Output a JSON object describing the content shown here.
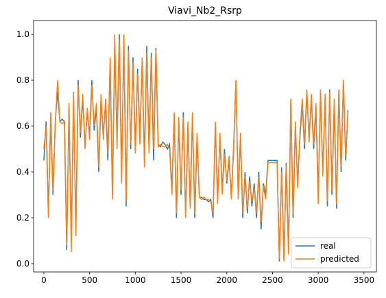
{
  "chart_data": {
    "type": "line",
    "title": "Viavi_Nb2_Rsrp",
    "x": [
      0,
      25,
      50,
      75,
      100,
      125,
      150,
      175,
      200,
      225,
      250,
      275,
      300,
      325,
      350,
      375,
      400,
      425,
      450,
      475,
      500,
      525,
      550,
      575,
      600,
      625,
      650,
      675,
      700,
      725,
      750,
      775,
      800,
      825,
      850,
      875,
      900,
      925,
      950,
      975,
      1000,
      1025,
      1050,
      1075,
      1100,
      1125,
      1150,
      1175,
      1200,
      1225,
      1250,
      1275,
      1300,
      1325,
      1350,
      1375,
      1400,
      1425,
      1450,
      1475,
      1500,
      1525,
      1550,
      1575,
      1600,
      1625,
      1650,
      1675,
      1700,
      1725,
      1750,
      1775,
      1800,
      1825,
      1850,
      1875,
      1900,
      1925,
      1950,
      1975,
      2000,
      2025,
      2050,
      2075,
      2100,
      2125,
      2150,
      2175,
      2200,
      2225,
      2250,
      2275,
      2300,
      2325,
      2350,
      2375,
      2400,
      2425,
      2450,
      2475,
      2500,
      2525,
      2550,
      2575,
      2600,
      2625,
      2650,
      2675,
      2700,
      2725,
      2750,
      2775,
      2800,
      2825,
      2850,
      2875,
      2900,
      2925,
      2950,
      2975,
      3000,
      3025,
      3050,
      3075,
      3100,
      3125,
      3150,
      3175,
      3200,
      3225,
      3250,
      3275,
      3300,
      3325
    ],
    "series": [
      {
        "name": "real",
        "color": "#1f77b4",
        "values": [
          0.45,
          0.62,
          0.22,
          0.64,
          0.3,
          0.62,
          0.75,
          0.62,
          0.63,
          0.62,
          0.06,
          0.68,
          0.1,
          0.72,
          0.15,
          0.8,
          0.55,
          0.72,
          0.52,
          0.66,
          0.56,
          0.8,
          0.58,
          0.68,
          0.4,
          0.72,
          0.56,
          0.7,
          0.45,
          0.88,
          0.3,
          0.95,
          0.55,
          1.0,
          0.4,
          0.98,
          0.25,
          0.95,
          0.5,
          0.9,
          0.5,
          0.85,
          0.55,
          0.88,
          0.45,
          0.95,
          0.5,
          0.92,
          0.45,
          0.94,
          0.52,
          0.51,
          0.53,
          0.52,
          0.5,
          0.52,
          0.32,
          0.65,
          0.2,
          0.62,
          0.3,
          0.66,
          0.21,
          0.6,
          0.25,
          0.65,
          0.2,
          0.55,
          0.29,
          0.29,
          0.28,
          0.28,
          0.27,
          0.28,
          0.2,
          0.6,
          0.28,
          0.55,
          0.32,
          0.5,
          0.35,
          0.45,
          0.3,
          0.5,
          0.8,
          0.3,
          0.55,
          0.2,
          0.4,
          0.22,
          0.38,
          0.25,
          0.35,
          0.2,
          0.4,
          0.15,
          0.35,
          0.3,
          0.45,
          0.45,
          0.45,
          0.45,
          0.45,
          0.01,
          0.42,
          0.02,
          0.44,
          0.05,
          0.7,
          0.2,
          0.6,
          0.35,
          0.55,
          0.7,
          0.5,
          0.75,
          0.55,
          0.72,
          0.5,
          0.68,
          0.3,
          0.75,
          0.4,
          0.72,
          0.25,
          0.76,
          0.3,
          0.7,
          0.24,
          0.75,
          0.4,
          0.8,
          0.45,
          0.67
        ]
      },
      {
        "name": "predicted",
        "color": "#ff7f0e",
        "values": [
          0.5,
          0.6,
          0.2,
          0.66,
          0.32,
          0.61,
          0.8,
          0.62,
          0.61,
          0.62,
          0.08,
          0.7,
          0.05,
          0.75,
          0.12,
          0.78,
          0.57,
          0.74,
          0.5,
          0.68,
          0.54,
          0.78,
          0.6,
          0.7,
          0.42,
          0.74,
          0.54,
          0.72,
          0.48,
          0.9,
          0.28,
          1.0,
          0.5,
          0.98,
          0.35,
          1.0,
          0.27,
          0.93,
          0.52,
          0.88,
          0.48,
          0.83,
          0.52,
          0.9,
          0.42,
          0.92,
          0.48,
          0.9,
          0.5,
          0.93,
          0.51,
          0.52,
          0.51,
          0.51,
          0.52,
          0.5,
          0.3,
          0.66,
          0.22,
          0.64,
          0.32,
          0.64,
          0.2,
          0.62,
          0.24,
          0.66,
          0.22,
          0.57,
          0.29,
          0.28,
          0.29,
          0.28,
          0.28,
          0.27,
          0.22,
          0.62,
          0.26,
          0.57,
          0.3,
          0.48,
          0.36,
          0.47,
          0.28,
          0.52,
          0.8,
          0.28,
          0.57,
          0.22,
          0.38,
          0.24,
          0.36,
          0.27,
          0.33,
          0.22,
          0.38,
          0.18,
          0.34,
          0.28,
          0.44,
          0.44,
          0.44,
          0.44,
          0.44,
          0.02,
          0.4,
          0.01,
          0.43,
          0.04,
          0.72,
          0.22,
          0.62,
          0.33,
          0.57,
          0.72,
          0.52,
          0.76,
          0.53,
          0.74,
          0.52,
          0.7,
          0.26,
          0.76,
          0.38,
          0.74,
          0.27,
          0.75,
          0.32,
          0.72,
          0.26,
          0.76,
          0.42,
          0.8,
          0.47,
          0.66
        ]
      }
    ],
    "xlim": [
      -112,
      3636
    ],
    "ylim": [
      -0.036,
      1.06
    ],
    "xticks": [
      0,
      500,
      1000,
      1500,
      2000,
      2500,
      3000,
      3500
    ],
    "yticks": [
      {
        "value": 0,
        "label": "0.0"
      },
      {
        "value": 0.2,
        "label": "0.2"
      },
      {
        "value": 0.4,
        "label": "0.4"
      },
      {
        "value": 0.6,
        "label": "0.6"
      },
      {
        "value": 0.8,
        "label": "0.8"
      },
      {
        "value": 1,
        "label": "1.0"
      }
    ],
    "legend": "lower right"
  }
}
